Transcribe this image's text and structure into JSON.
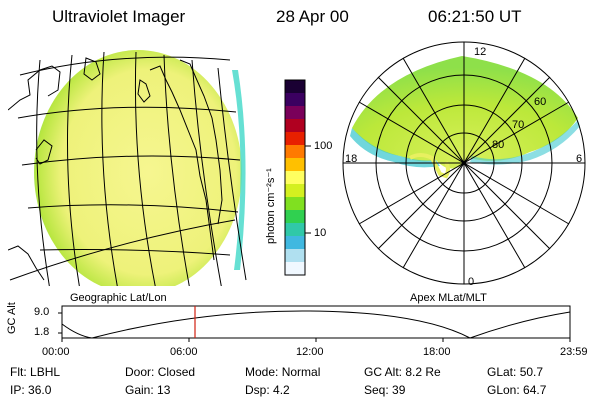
{
  "header": {
    "instrument": "Ultraviolet Imager",
    "date": "28 Apr 00",
    "time": "06:21:50 UT"
  },
  "left_panel": {
    "caption": "Geographic Lat/Lon"
  },
  "right_panel": {
    "caption": "Apex MLat/MLT",
    "mlt_labels": {
      "top": "12",
      "left": "18",
      "right": "6",
      "bottom": "0"
    },
    "lat_labels": [
      "60",
      "70",
      "80"
    ]
  },
  "colorbar": {
    "unit": "photon cm⁻²s⁻¹",
    "ticks": [
      "100",
      "10"
    ],
    "colors": [
      "#1a0033",
      "#3b0060",
      "#7a005a",
      "#b00020",
      "#e82000",
      "#ff7a00",
      "#ffc000",
      "#ffff60",
      "#d4f020",
      "#80e020",
      "#30d050",
      "#30c8a8",
      "#40b8e0",
      "#b0e0f0",
      "#f0f8ff"
    ]
  },
  "timeline": {
    "ylabel": "GC Alt",
    "y_ticks": [
      "9.0",
      "1.8"
    ],
    "x_ticks": [
      "00:00",
      "06:00",
      "12:00",
      "18:00",
      "23:59"
    ],
    "current_time": "06:21"
  },
  "status": {
    "row1": [
      {
        "label": "Flt:",
        "value": "LBHL"
      },
      {
        "label": "Door:",
        "value": "Closed"
      },
      {
        "label": "Mode:",
        "value": "Normal"
      },
      {
        "label": "GC Alt:",
        "value": "8.2 Re"
      },
      {
        "label": "GLat:",
        "value": "50.7"
      }
    ],
    "row2": [
      {
        "label": "IP:",
        "value": "36.0"
      },
      {
        "label": "Gain:",
        "value": "13"
      },
      {
        "label": "Dsp:",
        "value": "4.2"
      },
      {
        "label": "Seq:",
        "value": "39"
      },
      {
        "label": "GLon:",
        "value": "64.7"
      }
    ]
  }
}
